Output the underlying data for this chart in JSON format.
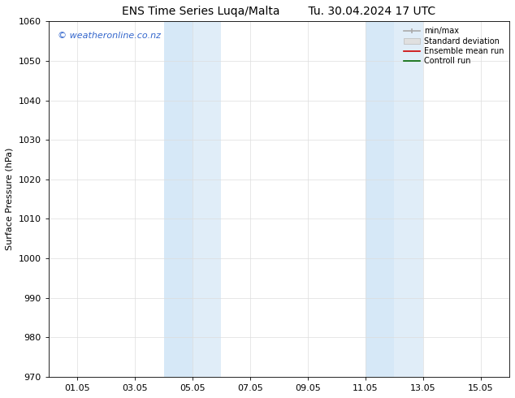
{
  "title_left": "ENS Time Series Luqa/Malta",
  "title_right": "Tu. 30.04.2024 17 UTC",
  "ylabel": "Surface Pressure (hPa)",
  "ylim": [
    970,
    1060
  ],
  "yticks": [
    970,
    980,
    990,
    1000,
    1010,
    1020,
    1030,
    1040,
    1050,
    1060
  ],
  "xtick_labels": [
    "01.05",
    "03.05",
    "05.05",
    "07.05",
    "09.05",
    "11.05",
    "13.05",
    "15.05"
  ],
  "xtick_positions": [
    1,
    3,
    5,
    7,
    9,
    11,
    13,
    15
  ],
  "xlim": [
    0,
    16
  ],
  "shaded_bands": [
    {
      "x_start": 4.0,
      "x_end": 5.0
    },
    {
      "x_start": 5.0,
      "x_end": 6.0
    },
    {
      "x_start": 11.0,
      "x_end": 12.0
    },
    {
      "x_start": 12.0,
      "x_end": 13.0
    }
  ],
  "shaded_colors": [
    "#d6e8f7",
    "#e0edf8",
    "#d6e8f7",
    "#e0edf8"
  ],
  "watermark_text": "© weatheronline.co.nz",
  "watermark_color": "#3366cc",
  "watermark_fontsize": 8,
  "legend_labels": [
    "min/max",
    "Standard deviation",
    "Ensemble mean run",
    "Controll run"
  ],
  "legend_line_colors": [
    "#aaaaaa",
    "#cccccc",
    "#cc0000",
    "#006600"
  ],
  "bg_color": "#ffffff",
  "grid_color": "#dddddd",
  "axis_label_fontsize": 8,
  "tick_fontsize": 8,
  "title_fontsize": 10
}
